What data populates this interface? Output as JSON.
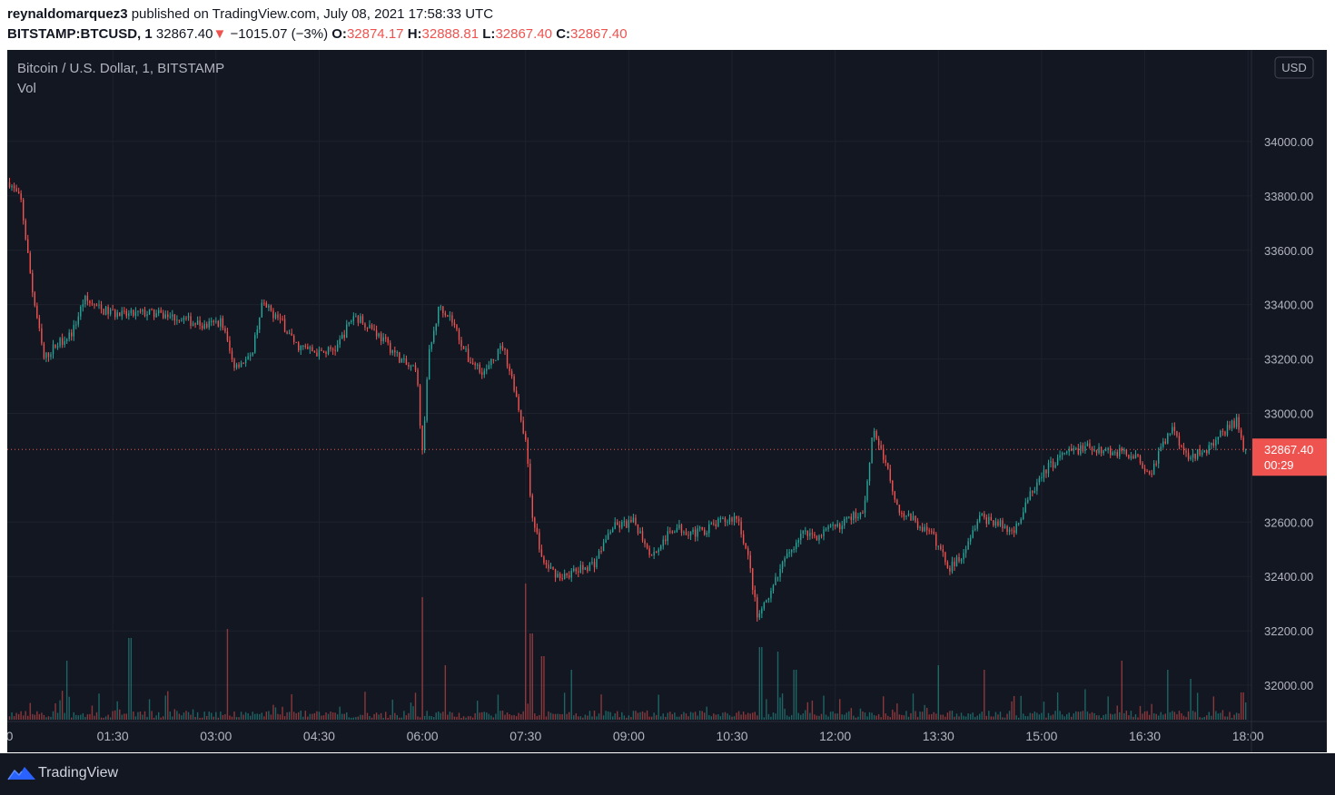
{
  "header": {
    "author": "reynaldomarquez3",
    "published": "published on TradingView.com, July 08, 2021 17:58:33 UTC",
    "symbol": "BITSTAMP:BTCUSD, 1",
    "last": "32867.40",
    "change_arrow": "▼",
    "change": "−1015.07 (−3%)",
    "o_label": "O:",
    "o_value": "32874.17",
    "h_label": "H:",
    "h_value": "32888.81",
    "l_label": "L:",
    "l_value": "32867.40",
    "c_label": "C:",
    "c_value": "32867.40"
  },
  "legend": {
    "title": "Bitcoin / U.S. Dollar, 1, BITSTAMP",
    "vol": "Vol"
  },
  "footer": {
    "brand": "TradingView"
  },
  "colors": {
    "background": "#131722",
    "grid": "#1e222d",
    "up": "#26a69a",
    "down": "#ef5350",
    "text": "#b2b5be",
    "price_tag": "#ef5350"
  },
  "chart_data": {
    "type": "candlestick",
    "interval_minutes": 1,
    "currency": "USD",
    "last_price": 32867.4,
    "last_price_label": "32867.40",
    "countdown": "00:29",
    "ylim": [
      31900,
      34150
    ],
    "y_ticks": [
      "34000.00",
      "33800.00",
      "33600.00",
      "33400.00",
      "33200.00",
      "33000.00",
      "32600.00",
      "32400.00",
      "32200.00",
      "32000.00"
    ],
    "x_ticks": [
      "01:30",
      "03:00",
      "04:30",
      "06:00",
      "07:30",
      "09:00",
      "10:30",
      "12:00",
      "13:30",
      "15:00",
      "16:30",
      "18:00"
    ],
    "first_tick_partial": "0",
    "price_path": [
      [
        "00:00",
        33850
      ],
      [
        "00:10",
        33780
      ],
      [
        "00:20",
        33450
      ],
      [
        "00:30",
        33200
      ],
      [
        "00:40",
        33250
      ],
      [
        "00:55",
        33300
      ],
      [
        "01:05",
        33420
      ],
      [
        "01:20",
        33380
      ],
      [
        "01:40",
        33360
      ],
      [
        "02:00",
        33370
      ],
      [
        "02:30",
        33350
      ],
      [
        "02:50",
        33320
      ],
      [
        "03:05",
        33340
      ],
      [
        "03:15",
        33180
      ],
      [
        "03:30",
        33200
      ],
      [
        "03:40",
        33400
      ],
      [
        "03:55",
        33350
      ],
      [
        "04:10",
        33250
      ],
      [
        "04:30",
        33220
      ],
      [
        "04:45",
        33240
      ],
      [
        "05:00",
        33360
      ],
      [
        "05:15",
        33320
      ],
      [
        "05:30",
        33250
      ],
      [
        "05:45",
        33180
      ],
      [
        "05:55",
        33150
      ],
      [
        "06:00",
        32850
      ],
      [
        "06:05",
        33200
      ],
      [
        "06:15",
        33400
      ],
      [
        "06:25",
        33350
      ],
      [
        "06:40",
        33200
      ],
      [
        "06:55",
        33150
      ],
      [
        "07:10",
        33250
      ],
      [
        "07:20",
        33100
      ],
      [
        "07:30",
        32900
      ],
      [
        "07:35",
        32650
      ],
      [
        "07:45",
        32450
      ],
      [
        "08:00",
        32400
      ],
      [
        "08:15",
        32420
      ],
      [
        "08:30",
        32450
      ],
      [
        "08:45",
        32580
      ],
      [
        "09:05",
        32600
      ],
      [
        "09:20",
        32480
      ],
      [
        "09:40",
        32580
      ],
      [
        "10:00",
        32560
      ],
      [
        "10:20",
        32600
      ],
      [
        "10:35",
        32620
      ],
      [
        "10:45",
        32450
      ],
      [
        "10:52",
        32250
      ],
      [
        "11:00",
        32300
      ],
      [
        "11:15",
        32450
      ],
      [
        "11:30",
        32560
      ],
      [
        "11:45",
        32550
      ],
      [
        "12:00",
        32580
      ],
      [
        "12:15",
        32620
      ],
      [
        "12:25",
        32640
      ],
      [
        "12:33",
        32950
      ],
      [
        "12:45",
        32800
      ],
      [
        "12:55",
        32650
      ],
      [
        "13:10",
        32600
      ],
      [
        "13:25",
        32550
      ],
      [
        "13:40",
        32430
      ],
      [
        "13:50",
        32480
      ],
      [
        "14:05",
        32620
      ],
      [
        "14:20",
        32600
      ],
      [
        "14:35",
        32560
      ],
      [
        "14:50",
        32700
      ],
      [
        "15:05",
        32800
      ],
      [
        "15:20",
        32850
      ],
      [
        "15:40",
        32880
      ],
      [
        "16:00",
        32860
      ],
      [
        "16:20",
        32850
      ],
      [
        "16:35",
        32780
      ],
      [
        "16:45",
        32880
      ],
      [
        "16:55",
        32950
      ],
      [
        "17:05",
        32850
      ],
      [
        "17:20",
        32850
      ],
      [
        "17:35",
        32920
      ],
      [
        "17:50",
        32970
      ],
      [
        "17:58",
        32867.4
      ]
    ],
    "volume_spikes": [
      [
        "00:50",
        65
      ],
      [
        "01:45",
        90
      ],
      [
        "03:10",
        100
      ],
      [
        "06:00",
        135
      ],
      [
        "06:20",
        60
      ],
      [
        "07:30",
        150
      ],
      [
        "07:35",
        95
      ],
      [
        "07:45",
        70
      ],
      [
        "08:10",
        55
      ],
      [
        "10:55",
        80
      ],
      [
        "11:10",
        75
      ],
      [
        "11:25",
        55
      ],
      [
        "13:30",
        60
      ],
      [
        "14:10",
        55
      ],
      [
        "16:10",
        65
      ],
      [
        "16:50",
        55
      ],
      [
        "17:10",
        45
      ],
      [
        "17:55",
        30
      ]
    ]
  }
}
